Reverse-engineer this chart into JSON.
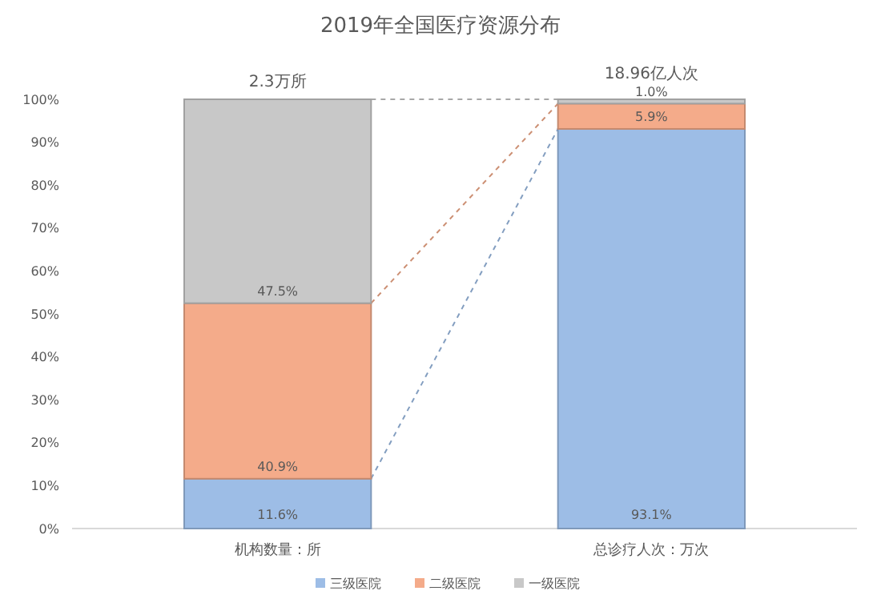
{
  "chart_data": {
    "type": "bar",
    "title": "2019年全国医疗资源分布",
    "categories": [
      "机构数量：所",
      "总诊疗人次：万次"
    ],
    "series": [
      {
        "name": "三级医院",
        "color": "#9dbde6",
        "values": [
          11.6,
          93.1
        ],
        "value_labels": [
          "11.6%",
          "93.1%"
        ]
      },
      {
        "name": "二级医院",
        "color": "#f4ab8a",
        "values": [
          40.9,
          5.9
        ],
        "value_labels": [
          "40.9%",
          "5.9%"
        ]
      },
      {
        "name": "一级医院",
        "color": "#c8c8c8",
        "values": [
          47.5,
          1.0
        ],
        "value_labels": [
          "47.5%",
          "1.0%"
        ]
      }
    ],
    "stacked": true,
    "annotations": [
      "2.3万所",
      "18.96亿人次"
    ],
    "ylim": [
      0,
      100
    ],
    "yticks": [
      {
        "value": 0,
        "label": "0%"
      },
      {
        "value": 10,
        "label": "10%"
      },
      {
        "value": 20,
        "label": "20%"
      },
      {
        "value": 30,
        "label": "30%"
      },
      {
        "value": 40,
        "label": "40%"
      },
      {
        "value": 50,
        "label": "50%"
      },
      {
        "value": 60,
        "label": "60%"
      },
      {
        "value": 70,
        "label": "70%"
      },
      {
        "value": 80,
        "label": "80%"
      },
      {
        "value": 90,
        "label": "90%"
      },
      {
        "value": 100,
        "label": "100%"
      }
    ],
    "grid": false,
    "legend": "bottom"
  }
}
